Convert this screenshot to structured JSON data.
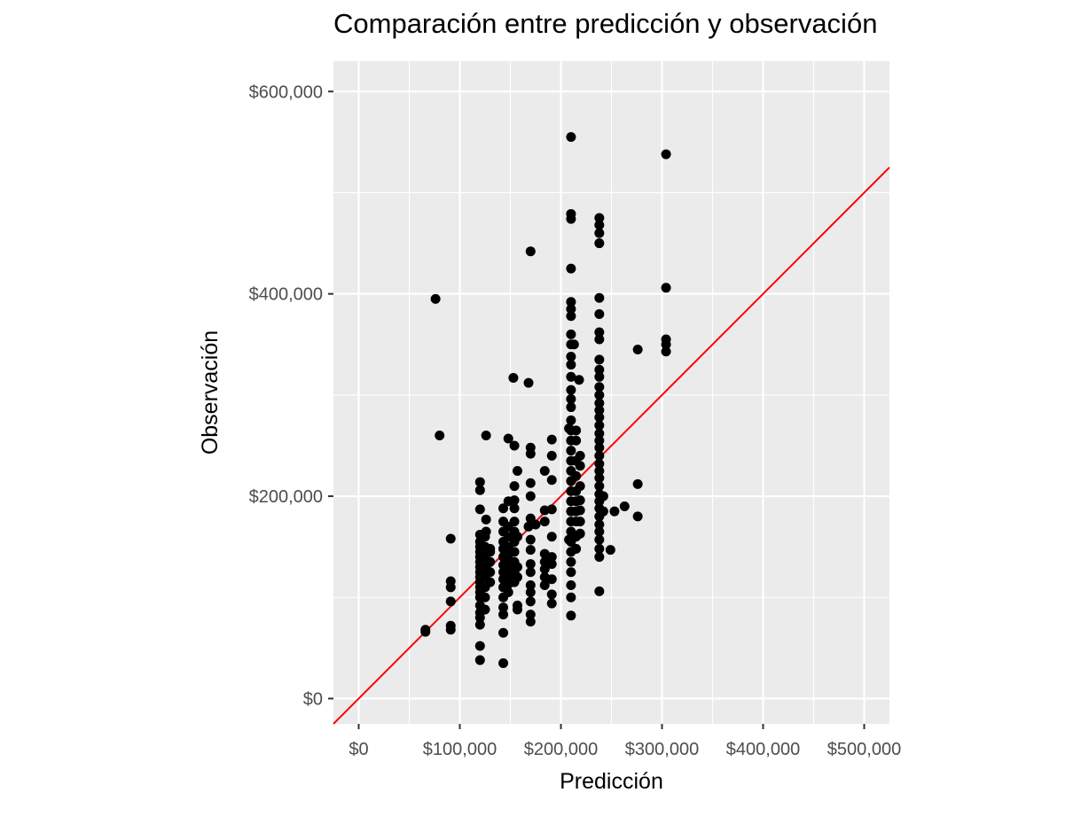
{
  "chart_data": {
    "type": "scatter",
    "title": "Comparación entre predicción y observación",
    "xlabel": "Predicción",
    "ylabel": "Observación",
    "xlim": [
      -25000,
      525000
    ],
    "ylim": [
      -25000,
      630000
    ],
    "x_ticks": [
      0,
      100000,
      200000,
      300000,
      400000,
      500000
    ],
    "x_tick_labels": [
      "$0",
      "$100,000",
      "$200,000",
      "$300,000",
      "$400,000",
      "$500,000"
    ],
    "y_ticks": [
      0,
      200000,
      400000,
      600000
    ],
    "y_tick_labels": [
      "$0",
      "$200,000",
      "$400,000",
      "$600,000"
    ],
    "grid": true,
    "panel_color": "#ebebeb",
    "point_color": "#000000",
    "reference_line": {
      "slope": 1,
      "intercept": 0,
      "color": "#ff0000"
    },
    "series": [
      {
        "points": [
          [
            66000,
            68000
          ],
          [
            66000,
            66000
          ],
          [
            76000,
            395000
          ],
          [
            80000,
            260000
          ],
          [
            91000,
            158000
          ],
          [
            91000,
            116000
          ],
          [
            91000,
            110000
          ],
          [
            91000,
            96000
          ],
          [
            91000,
            72000
          ],
          [
            91000,
            68000
          ],
          [
            120000,
            214000
          ],
          [
            120000,
            206000
          ],
          [
            120000,
            187000
          ],
          [
            120000,
            162000
          ],
          [
            120000,
            155000
          ],
          [
            120000,
            150000
          ],
          [
            120000,
            145000
          ],
          [
            120000,
            140000
          ],
          [
            120000,
            135000
          ],
          [
            120000,
            130000
          ],
          [
            120000,
            125000
          ],
          [
            120000,
            120000
          ],
          [
            120000,
            115000
          ],
          [
            120000,
            110000
          ],
          [
            120000,
            105000
          ],
          [
            120000,
            100000
          ],
          [
            120000,
            92000
          ],
          [
            120000,
            85000
          ],
          [
            120000,
            80000
          ],
          [
            120000,
            73000
          ],
          [
            120000,
            52000
          ],
          [
            120000,
            38000
          ],
          [
            125000,
            160000
          ],
          [
            125000,
            150000
          ],
          [
            125000,
            140000
          ],
          [
            125000,
            130000
          ],
          [
            125000,
            120000
          ],
          [
            125000,
            110000
          ],
          [
            125000,
            100000
          ],
          [
            125000,
            88000
          ],
          [
            126000,
            260000
          ],
          [
            126000,
            177000
          ],
          [
            126000,
            165000
          ],
          [
            130000,
            145000
          ],
          [
            130000,
            135000
          ],
          [
            130000,
            125000
          ],
          [
            130000,
            115000
          ],
          [
            130000,
            148000
          ],
          [
            143000,
            188000
          ],
          [
            143000,
            175000
          ],
          [
            143000,
            165000
          ],
          [
            143000,
            155000
          ],
          [
            143000,
            148000
          ],
          [
            143000,
            140000
          ],
          [
            143000,
            132000
          ],
          [
            143000,
            125000
          ],
          [
            143000,
            118000
          ],
          [
            143000,
            110000
          ],
          [
            143000,
            100000
          ],
          [
            143000,
            90000
          ],
          [
            143000,
            83000
          ],
          [
            143000,
            65000
          ],
          [
            143000,
            35000
          ],
          [
            148000,
            257000
          ],
          [
            148000,
            195000
          ],
          [
            148000,
            170000
          ],
          [
            148000,
            160000
          ],
          [
            148000,
            150000
          ],
          [
            148000,
            142000
          ],
          [
            148000,
            135000
          ],
          [
            148000,
            128000
          ],
          [
            148000,
            120000
          ],
          [
            148000,
            113000
          ],
          [
            148000,
            105000
          ],
          [
            153000,
            317000
          ],
          [
            154000,
            250000
          ],
          [
            154000,
            210000
          ],
          [
            154000,
            196000
          ],
          [
            154000,
            188000
          ],
          [
            154000,
            175000
          ],
          [
            154000,
            165000
          ],
          [
            154000,
            155000
          ],
          [
            154000,
            145000
          ],
          [
            154000,
            135000
          ],
          [
            154000,
            125000
          ],
          [
            154000,
            115000
          ],
          [
            157000,
            225000
          ],
          [
            157000,
            160000
          ],
          [
            157000,
            130000
          ],
          [
            157000,
            120000
          ],
          [
            157000,
            92000
          ],
          [
            157000,
            88000
          ],
          [
            168000,
            312000
          ],
          [
            168000,
            170000
          ],
          [
            170000,
            442000
          ],
          [
            170000,
            248000
          ],
          [
            170000,
            242000
          ],
          [
            170000,
            213000
          ],
          [
            170000,
            200000
          ],
          [
            170000,
            178000
          ],
          [
            170000,
            157000
          ],
          [
            170000,
            147000
          ],
          [
            170000,
            133000
          ],
          [
            170000,
            125000
          ],
          [
            170000,
            112000
          ],
          [
            170000,
            105000
          ],
          [
            170000,
            96000
          ],
          [
            170000,
            83000
          ],
          [
            170000,
            76000
          ],
          [
            175000,
            172000
          ],
          [
            184000,
            225000
          ],
          [
            184000,
            186000
          ],
          [
            184000,
            175000
          ],
          [
            184000,
            143000
          ],
          [
            184000,
            135000
          ],
          [
            184000,
            128000
          ],
          [
            184000,
            120000
          ],
          [
            184000,
            112000
          ],
          [
            191000,
            256000
          ],
          [
            191000,
            240000
          ],
          [
            191000,
            216000
          ],
          [
            191000,
            187000
          ],
          [
            191000,
            160000
          ],
          [
            191000,
            140000
          ],
          [
            191000,
            133000
          ],
          [
            191000,
            118000
          ],
          [
            191000,
            103000
          ],
          [
            191000,
            94000
          ],
          [
            208000,
            267000
          ],
          [
            208000,
            157000
          ],
          [
            210000,
            555000
          ],
          [
            210000,
            479000
          ],
          [
            210000,
            474000
          ],
          [
            210000,
            425000
          ],
          [
            210000,
            392000
          ],
          [
            210000,
            385000
          ],
          [
            210000,
            378000
          ],
          [
            210000,
            360000
          ],
          [
            210000,
            350000
          ],
          [
            210000,
            338000
          ],
          [
            210000,
            330000
          ],
          [
            210000,
            318000
          ],
          [
            210000,
            305000
          ],
          [
            210000,
            296000
          ],
          [
            210000,
            288000
          ],
          [
            210000,
            275000
          ],
          [
            210000,
            265000
          ],
          [
            210000,
            255000
          ],
          [
            210000,
            245000
          ],
          [
            210000,
            235000
          ],
          [
            210000,
            225000
          ],
          [
            210000,
            215000
          ],
          [
            210000,
            205000
          ],
          [
            210000,
            195000
          ],
          [
            210000,
            185000
          ],
          [
            210000,
            175000
          ],
          [
            210000,
            165000
          ],
          [
            210000,
            155000
          ],
          [
            210000,
            145000
          ],
          [
            210000,
            135000
          ],
          [
            210000,
            125000
          ],
          [
            210000,
            112000
          ],
          [
            210000,
            100000
          ],
          [
            210000,
            82000
          ],
          [
            213000,
            350000
          ],
          [
            215000,
            265000
          ],
          [
            215000,
            255000
          ],
          [
            215000,
            235000
          ],
          [
            215000,
            220000
          ],
          [
            215000,
            205000
          ],
          [
            215000,
            195000
          ],
          [
            215000,
            185000
          ],
          [
            215000,
            175000
          ],
          [
            215000,
            160000
          ],
          [
            215000,
            148000
          ],
          [
            218000,
            315000
          ],
          [
            219000,
            240000
          ],
          [
            219000,
            230000
          ],
          [
            219000,
            210000
          ],
          [
            219000,
            196000
          ],
          [
            219000,
            186000
          ],
          [
            219000,
            175000
          ],
          [
            219000,
            163000
          ],
          [
            238000,
            475000
          ],
          [
            238000,
            468000
          ],
          [
            238000,
            460000
          ],
          [
            238000,
            450000
          ],
          [
            238000,
            396000
          ],
          [
            238000,
            380000
          ],
          [
            238000,
            362000
          ],
          [
            238000,
            355000
          ],
          [
            238000,
            335000
          ],
          [
            238000,
            325000
          ],
          [
            238000,
            318000
          ],
          [
            238000,
            308000
          ],
          [
            238000,
            300000
          ],
          [
            238000,
            292000
          ],
          [
            238000,
            285000
          ],
          [
            238000,
            278000
          ],
          [
            238000,
            270000
          ],
          [
            238000,
            262000
          ],
          [
            238000,
            255000
          ],
          [
            238000,
            248000
          ],
          [
            238000,
            240000
          ],
          [
            238000,
            232000
          ],
          [
            238000,
            225000
          ],
          [
            238000,
            218000
          ],
          [
            238000,
            210000
          ],
          [
            238000,
            202000
          ],
          [
            238000,
            195000
          ],
          [
            238000,
            188000
          ],
          [
            238000,
            180000
          ],
          [
            238000,
            172000
          ],
          [
            238000,
            165000
          ],
          [
            238000,
            157000
          ],
          [
            238000,
            148000
          ],
          [
            238000,
            140000
          ],
          [
            238000,
            106000
          ],
          [
            242000,
            200000
          ],
          [
            242000,
            185000
          ],
          [
            249000,
            147000
          ],
          [
            253000,
            185000
          ],
          [
            263000,
            190000
          ],
          [
            276000,
            345000
          ],
          [
            276000,
            212000
          ],
          [
            276000,
            180000
          ],
          [
            304000,
            538000
          ],
          [
            304000,
            406000
          ],
          [
            304000,
            355000
          ],
          [
            304000,
            350000
          ],
          [
            304000,
            343000
          ]
        ]
      }
    ]
  }
}
